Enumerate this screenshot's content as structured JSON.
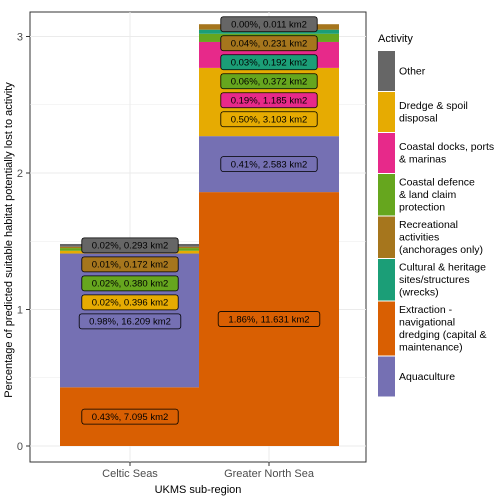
{
  "chart_data": {
    "type": "bar",
    "stacked": true,
    "xlabel": "UKMS sub-region",
    "ylabel": "Percentage of predicted suitable habitat potentially lost to activity",
    "categories": [
      "Celtic Seas",
      "Greater North Sea"
    ],
    "ylim": [
      0,
      3.1
    ],
    "yticks": [
      0,
      1,
      2,
      3
    ],
    "grid": true,
    "legend_position": "right",
    "legend_title": "Activity",
    "series": [
      {
        "name": "Extraction - navigational dredging (capital & maintenance)",
        "color": "#d95f02",
        "values": [
          0.43,
          1.86
        ],
        "labels": [
          "0.43%,  7.095 km2",
          "1.86%,  11.631 km2"
        ]
      },
      {
        "name": "Aquaculture",
        "color": "#7570b3",
        "values": [
          0.98,
          0.41
        ],
        "labels": [
          "0.98%,  16.209 km2",
          "0.41%,  2.583 km2"
        ]
      },
      {
        "name": "Dredge & spoil disposal",
        "color": "#e6ab02",
        "values": [
          0.02,
          0.5
        ],
        "labels": [
          "0.02%,  0.396 km2",
          "0.50%,  3.103 km2"
        ]
      },
      {
        "name": "Coastal docks, ports & marinas",
        "color": "#e7298a",
        "values": [
          0.0,
          0.19
        ],
        "labels": [
          "",
          "0.19%,  1.185 km2"
        ]
      },
      {
        "name": "Coastal defence & land claim protection",
        "color": "#66a61e",
        "values": [
          0.02,
          0.06
        ],
        "labels": [
          "0.02%,  0.380 km2",
          "0.06%,  0.372 km2"
        ]
      },
      {
        "name": "Cultural & heritage sites/structures (wrecks)",
        "color": "#1b9e77",
        "values": [
          0.0,
          0.03
        ],
        "labels": [
          "",
          "0.03%,  0.192 km2"
        ]
      },
      {
        "name": "Recreational activities (anchorages only)",
        "color": "#a6761d",
        "values": [
          0.01,
          0.04
        ],
        "labels": [
          "0.01%,  0.172 km2",
          "0.04%,  0.231 km2"
        ]
      },
      {
        "name": "Other",
        "color": "#666666",
        "values": [
          0.02,
          0.0
        ],
        "labels": [
          "0.02%,  0.293 km2",
          "0.00%,  0.011 km2"
        ]
      }
    ],
    "legend_order": [
      {
        "name": "Other",
        "lines": [
          "Other"
        ],
        "color": "#666666"
      },
      {
        "name": "Dredge & spoil disposal",
        "lines": [
          "Dredge & spoil",
          "disposal"
        ],
        "color": "#e6ab02"
      },
      {
        "name": "Coastal docks, ports & marinas",
        "lines": [
          "Coastal docks, ports",
          "& marinas"
        ],
        "color": "#e7298a"
      },
      {
        "name": "Coastal defence & land claim protection",
        "lines": [
          "Coastal defence",
          "& land claim",
          "protection"
        ],
        "color": "#66a61e"
      },
      {
        "name": "Recreational activities (anchorages only)",
        "lines": [
          "Recreational",
          "activities",
          "(anchorages only)"
        ],
        "color": "#a6761d"
      },
      {
        "name": "Cultural & heritage sites/structures (wrecks)",
        "lines": [
          "Cultural & heritage",
          "sites/structures",
          "(wrecks)"
        ],
        "color": "#1b9e77"
      },
      {
        "name": "Extraction - navigational dredging (capital & maintenance)",
        "lines": [
          "Extraction -",
          "navigational",
          "dredging (capital &",
          "maintenance)"
        ],
        "color": "#d95f02"
      },
      {
        "name": "Aquaculture",
        "lines": [
          "Aquaculture"
        ],
        "color": "#7570b3"
      }
    ]
  }
}
